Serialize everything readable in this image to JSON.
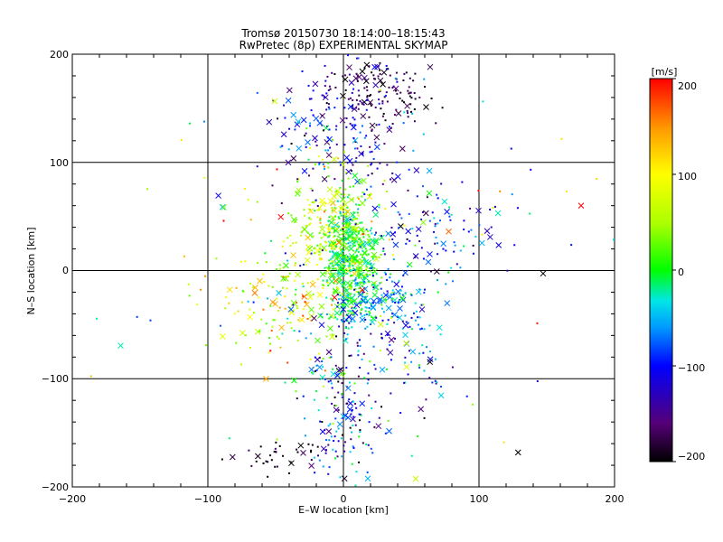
{
  "chart_data": {
    "type": "scatter",
    "title": "Tromsø 20150730 18:14:00–18:15:43",
    "subtitle": "RwPretec (8p) EXPERIMENTAL SKYMAP",
    "xlabel": "E–W location [km]",
    "ylabel": "N–S location [km]",
    "xlim": [
      -200,
      200
    ],
    "ylim": [
      -200,
      200
    ],
    "xticks": [
      "−200",
      "−100",
      "0",
      "100",
      "200"
    ],
    "yticks": [
      "−200",
      "−100",
      "0",
      "100",
      "200"
    ],
    "grid": true,
    "colorbar": {
      "label": "[m/s]",
      "range": [
        -200,
        200
      ],
      "ticks": [
        "200",
        "100",
        "0",
        "−100",
        "−200"
      ],
      "colors": [
        "#000000",
        "#550077",
        "#0000ff",
        "#0099ff",
        "#00e6e6",
        "#00ff00",
        "#aaff00",
        "#ffff00",
        "#ff9900",
        "#ff0000"
      ]
    },
    "markers": [
      "x",
      "dot"
    ],
    "clusters": [
      {
        "x": 5,
        "y": 10,
        "sx": 10,
        "sy": 30,
        "v": 5,
        "sv": 30,
        "n": 500
      },
      {
        "x": -10,
        "y": 40,
        "sx": 15,
        "sy": 30,
        "v": 60,
        "sv": 40,
        "n": 180
      },
      {
        "x": 25,
        "y": -25,
        "sx": 20,
        "sy": 15,
        "v": -60,
        "sv": 40,
        "n": 150
      },
      {
        "x": 30,
        "y": 165,
        "sx": 20,
        "sy": 15,
        "v": -180,
        "sv": 20,
        "n": 120
      },
      {
        "x": 0,
        "y": 130,
        "sx": 25,
        "sy": 30,
        "v": -120,
        "sv": 40,
        "n": 180
      },
      {
        "x": -45,
        "y": -30,
        "sx": 25,
        "sy": 25,
        "v": 80,
        "sv": 50,
        "n": 140
      },
      {
        "x": 0,
        "y": -120,
        "sx": 15,
        "sy": 40,
        "v": -100,
        "sv": 60,
        "n": 170
      },
      {
        "x": -50,
        "y": -170,
        "sx": 15,
        "sy": 10,
        "v": -190,
        "sv": 15,
        "n": 35
      },
      {
        "x": 60,
        "y": 40,
        "sx": 30,
        "sy": 20,
        "v": -110,
        "sv": 50,
        "n": 100
      },
      {
        "x": 50,
        "y": -70,
        "sx": 20,
        "sy": 25,
        "v": -80,
        "sv": 40,
        "n": 70
      },
      {
        "x": 0,
        "y": 0,
        "sx": 90,
        "sy": 90,
        "v": 0,
        "sv": 120,
        "n": 160
      }
    ]
  }
}
